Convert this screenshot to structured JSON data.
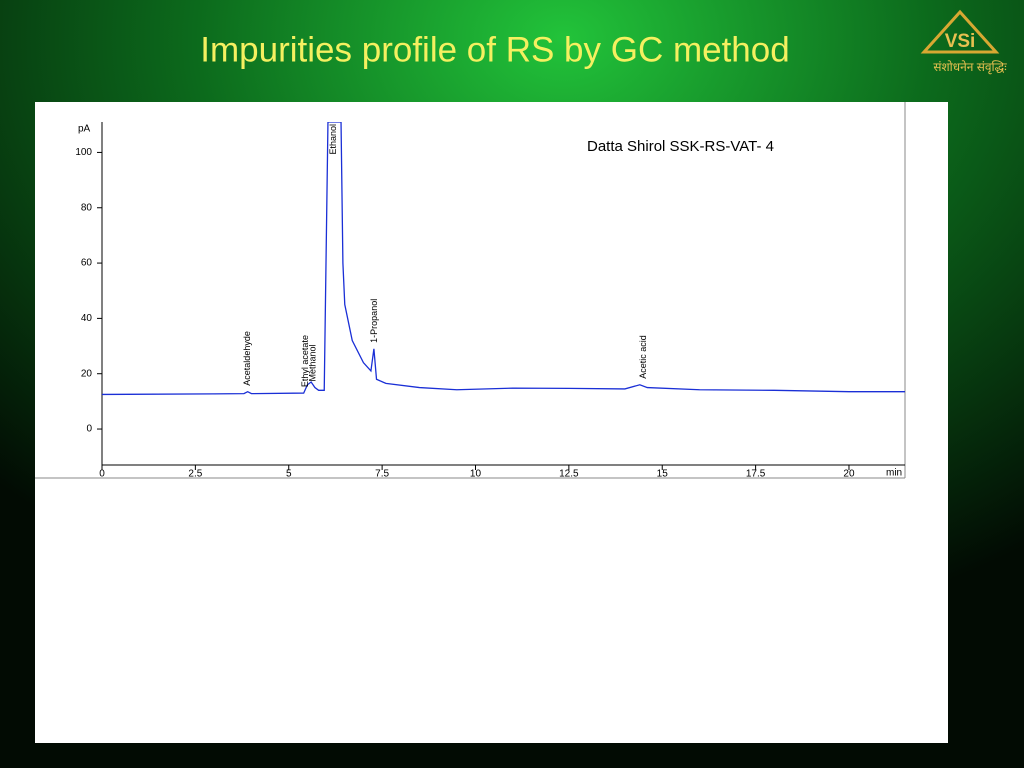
{
  "slide": {
    "title": "Impurities profile of RS by GC method",
    "logo": {
      "mark": "VSi",
      "motto": "संशोधनेन संवृद्धिः"
    }
  },
  "chart_data": {
    "type": "line",
    "title": "Datta Shirol SSK-RS-VAT- 4",
    "y_label": "pA",
    "x_label": "min",
    "color": "#1a2fd6",
    "xlim": [
      0,
      21.5
    ],
    "ylim": [
      -13,
      111
    ],
    "xticks": [
      0,
      2.5,
      5,
      7.5,
      10,
      12.5,
      15,
      17.5,
      20
    ],
    "yticks": [
      0,
      20,
      40,
      60,
      80,
      100
    ],
    "x": [
      0,
      3,
      3.8,
      3.9,
      4.0,
      5.4,
      5.5,
      5.6,
      5.7,
      5.8,
      5.95,
      6.05,
      6.4,
      6.45,
      6.5,
      6.7,
      7.0,
      7.2,
      7.28,
      7.35,
      7.6,
      8.5,
      9.5,
      11,
      12.5,
      14,
      14.4,
      14.6,
      16,
      18,
      20,
      21.5
    ],
    "values": [
      12.5,
      12.7,
      12.8,
      13.5,
      12.8,
      13,
      16,
      17,
      15,
      14,
      14,
      111,
      111,
      60,
      45,
      32,
      24,
      21,
      29,
      18,
      16.5,
      15,
      14.2,
      14.8,
      14.7,
      14.5,
      16,
      15,
      14.2,
      14,
      13.5,
      13.5
    ],
    "peaks": [
      {
        "label": "Acetaldehyde",
        "x": 3.9
      },
      {
        "label": "Ethyl acetate",
        "x": 5.45
      },
      {
        "label": "Methanol",
        "x": 5.65
      },
      {
        "label": "Ethanol",
        "x": 6.2
      },
      {
        "label": "1-Propanol",
        "x": 7.3
      },
      {
        "label": "Acetic acid",
        "x": 14.5
      }
    ]
  }
}
